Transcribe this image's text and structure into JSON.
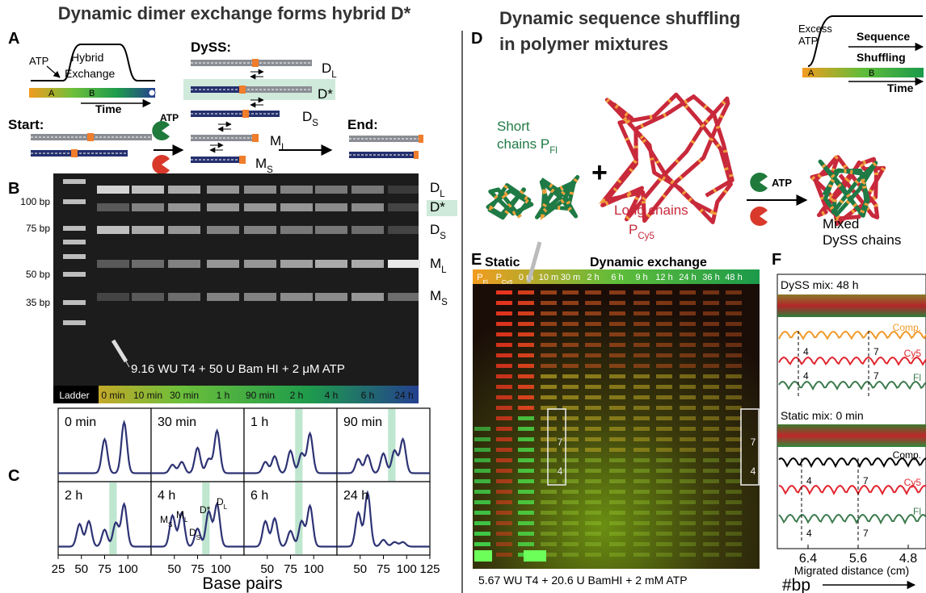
{
  "title": "Dynamic dimer exchange forms hybrid D*",
  "panels": [
    "A",
    "B",
    "C",
    "D",
    "E",
    "F"
  ],
  "a": {
    "atp": "ATP",
    "hybrid": "Hybrid",
    "exchange": "Exchange",
    "stages": [
      "A",
      "B"
    ],
    "time": "Time",
    "start": "Start:",
    "dyss": "DySS:",
    "end": "End:",
    "enzyme": "ATP"
  },
  "species": [
    {
      "text": "D",
      "sub": "L"
    },
    {
      "text": "D*"
    },
    {
      "text": "D",
      "sub": "S"
    },
    {
      "text": "M",
      "sub": "L"
    },
    {
      "text": "M",
      "sub": "S"
    }
  ],
  "b": {
    "ladder": [
      "100 bp",
      "75 bp",
      "50 bp",
      "35 bp"
    ],
    "condition": "9.16 WU T4 + 50 U Bam HI + 2 μM ATP",
    "lanes": [
      "Ladder",
      "0 min",
      "10 min",
      "30 min",
      "1 h",
      "90 min",
      "2 h",
      "4 h",
      "6 h",
      "24 h"
    ]
  },
  "c": {
    "plots": [
      "0 min",
      "30 min",
      "1 h",
      "90 min",
      "2 h",
      "4 h",
      "6 h",
      "24 h"
    ],
    "ticks": [
      [
        25,
        50,
        75,
        100
      ],
      [
        50,
        75,
        100
      ],
      [
        50,
        75,
        100
      ],
      [
        50,
        75,
        100,
        125
      ]
    ],
    "x_label": "Base pairs"
  },
  "right_title": [
    "Dynamic sequence shuffling",
    "in polymer mixtures"
  ],
  "d": {
    "excess_atp": [
      "Excess",
      "ATP"
    ],
    "shuffling": [
      "Sequence",
      "Shuffling"
    ],
    "stages": [
      "A",
      "B"
    ],
    "time": "Time",
    "short": [
      "Short",
      {
        "text": "chains P",
        "sub": "Fl"
      }
    ],
    "long": [
      "Long chains",
      {
        "text": "P",
        "sub": "Cy5"
      }
    ],
    "enzyme": "ATP",
    "plus": "+",
    "mixed": [
      "Mixed",
      "DySS chains"
    ]
  },
  "e": {
    "static": "Static",
    "dynamic": "Dynamic exchange",
    "lanes": [
      {
        "text": "P",
        "sub": "Fl"
      },
      {
        "text": "P",
        "sub": "Cy5"
      },
      "0 m",
      "10 m",
      "30 m",
      "2 h",
      "6 h",
      "9 h",
      "12 h",
      "24 h",
      "36 h",
      "48 h"
    ],
    "markers": [
      "7",
      "4"
    ],
    "condition": "5.67 WU T4 + 20.6 U BamHI + 2 mM ATP"
  },
  "f": {
    "top": "DySS mix: 48 h",
    "bottom": "Static mix: 0 min",
    "traces": [
      "Comp.",
      "Cy5",
      "Fl"
    ],
    "markers": [
      "4",
      "7"
    ],
    "ticks": [
      "6.4",
      "5.6",
      "4.8"
    ],
    "x_label": "Migrated distance (cm)",
    "bp": "#bp"
  }
}
